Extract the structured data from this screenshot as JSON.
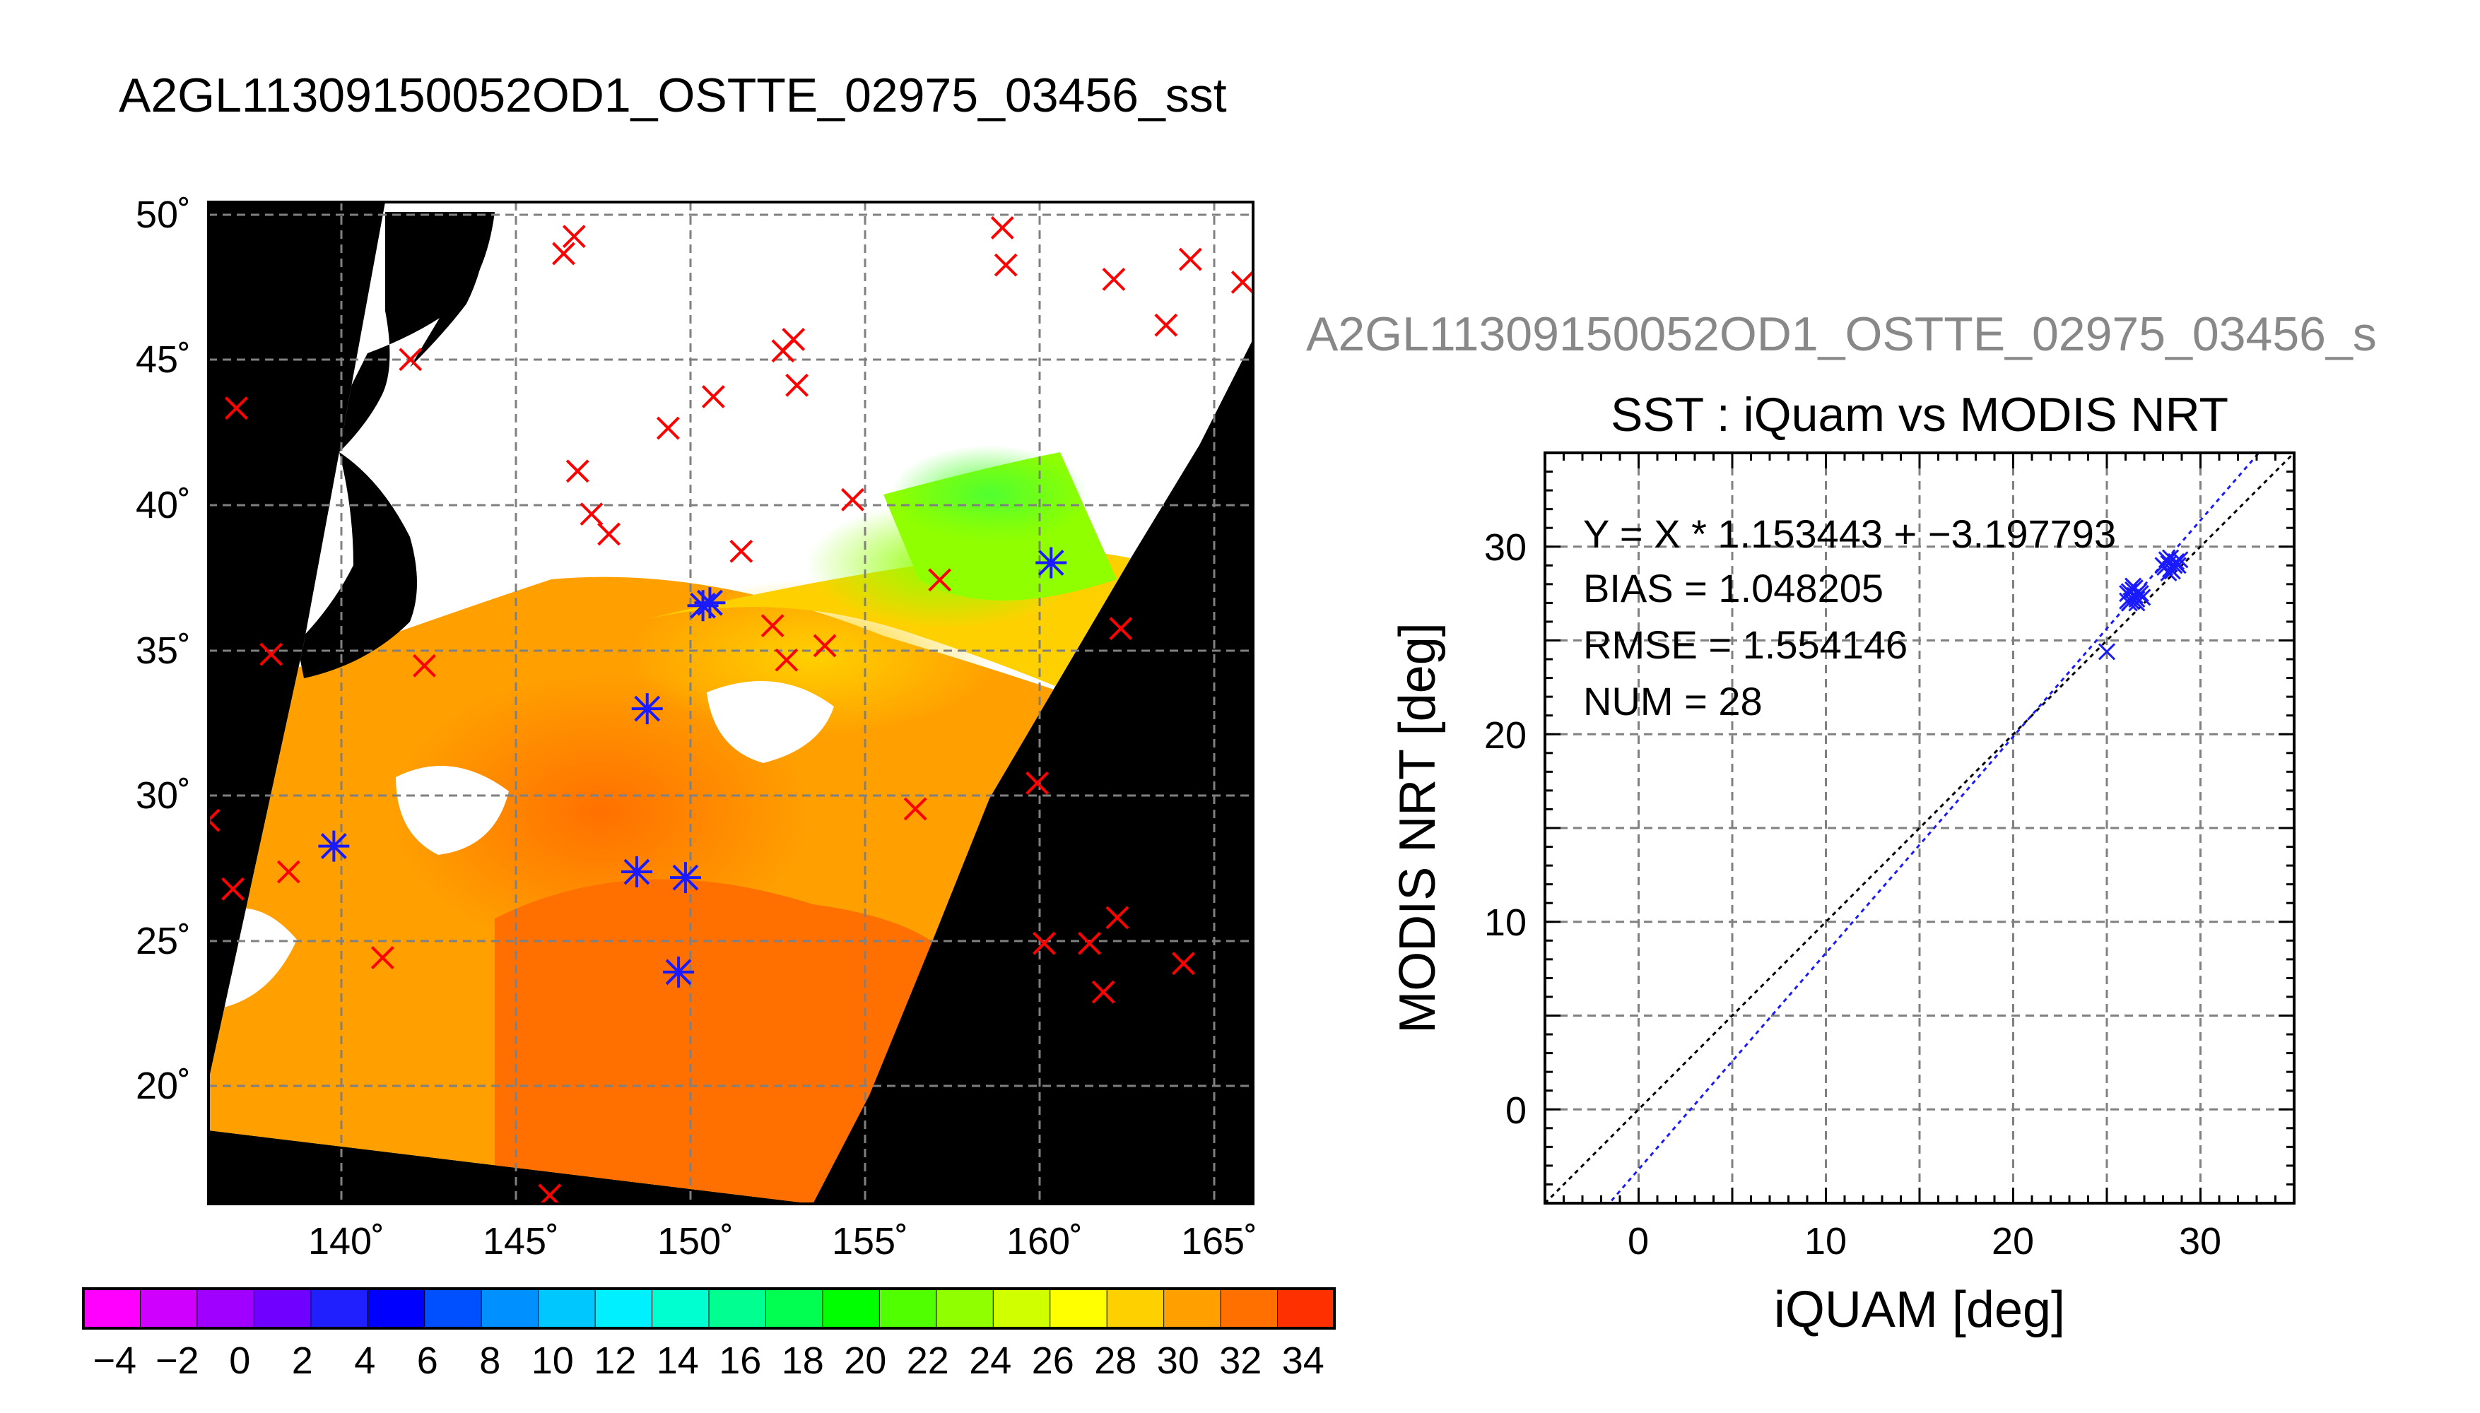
{
  "map_title": "A2GL11309150052OD1_OSTTE_02975_03456_sst",
  "scatter_granule_label": "A2GL11309150052OD1_OSTTE_02975_03456_s",
  "colors": {
    "land": "#000000",
    "cloud": "#ffffff",
    "grid": "#808080",
    "iquam_marker": "#ff0000",
    "matchup_marker": "#1a1aff",
    "fit_line": "#1a1aff",
    "identity_line": "#000000",
    "granule_label": "#888888"
  },
  "chart_data": [
    {
      "type": "heatmap",
      "title": "A2GL11309150052OD1_OSTTE_02975_03456_sst",
      "xlabel": "",
      "ylabel": "",
      "x_ticks": [
        "140˚",
        "145˚",
        "150˚",
        "155˚",
        "160˚",
        "165˚"
      ],
      "y_ticks": [
        "50˚",
        "45˚",
        "40˚",
        "35˚",
        "30˚",
        "25˚",
        "20˚"
      ],
      "xlim": [
        136,
        166
      ],
      "ylim": [
        16,
        51
      ],
      "grid": true,
      "colorbar": {
        "ticks": [
          "−4",
          "−2",
          "0",
          "2",
          "4",
          "6",
          "8",
          "10",
          "12",
          "14",
          "16",
          "18",
          "20",
          "22",
          "24",
          "26",
          "28",
          "30",
          "32",
          "34"
        ],
        "range": [
          -5,
          35
        ],
        "colors": [
          "#ff00ff",
          "#d000ff",
          "#a000ff",
          "#7000ff",
          "#2020ff",
          "#0000ff",
          "#0050ff",
          "#0090ff",
          "#00c8ff",
          "#00f0ff",
          "#00ffd0",
          "#00ff90",
          "#00ff50",
          "#00ff00",
          "#50ff00",
          "#90ff00",
          "#d0ff00",
          "#ffff00",
          "#ffd000",
          "#ffa000",
          "#ff7000",
          "#ff3000"
        ]
      },
      "sst_field_samples": [
        {
          "lon": 141,
          "lat": 30,
          "sst": 28
        },
        {
          "lon": 147,
          "lat": 27,
          "sst": 29
        },
        {
          "lon": 150,
          "lat": 22,
          "sst": 31
        },
        {
          "lon": 153,
          "lat": 31,
          "sst": 27
        },
        {
          "lon": 155,
          "lat": 36,
          "sst": 25
        },
        {
          "lon": 158,
          "lat": 38,
          "sst": 23
        },
        {
          "lon": 157,
          "lat": 41,
          "sst": 20
        }
      ],
      "iquam_points": [
        {
          "lon": 136.8,
          "lat": 43.8
        },
        {
          "lon": 137.8,
          "lat": 35.2
        },
        {
          "lon": 136.0,
          "lat": 29.4
        },
        {
          "lon": 136.7,
          "lat": 27.0
        },
        {
          "lon": 138.3,
          "lat": 27.6
        },
        {
          "lon": 141.0,
          "lat": 24.6
        },
        {
          "lon": 141.8,
          "lat": 45.5
        },
        {
          "lon": 142.2,
          "lat": 34.8
        },
        {
          "lon": 146.2,
          "lat": 49.2
        },
        {
          "lon": 146.5,
          "lat": 49.8
        },
        {
          "lon": 146.6,
          "lat": 41.6
        },
        {
          "lon": 147.0,
          "lat": 40.1
        },
        {
          "lon": 147.5,
          "lat": 39.4
        },
        {
          "lon": 145.8,
          "lat": 16.3
        },
        {
          "lon": 149.2,
          "lat": 43.1
        },
        {
          "lon": 150.5,
          "lat": 44.2
        },
        {
          "lon": 151.3,
          "lat": 38.8
        },
        {
          "lon": 152.5,
          "lat": 45.8
        },
        {
          "lon": 152.8,
          "lat": 46.2
        },
        {
          "lon": 152.9,
          "lat": 44.6
        },
        {
          "lon": 152.2,
          "lat": 36.2
        },
        {
          "lon": 152.6,
          "lat": 35.0
        },
        {
          "lon": 153.7,
          "lat": 35.5
        },
        {
          "lon": 154.5,
          "lat": 40.6
        },
        {
          "lon": 156.3,
          "lat": 29.8
        },
        {
          "lon": 157.0,
          "lat": 37.8
        },
        {
          "lon": 158.8,
          "lat": 50.1
        },
        {
          "lon": 158.9,
          "lat": 48.8
        },
        {
          "lon": 159.8,
          "lat": 30.7
        },
        {
          "lon": 160.0,
          "lat": 25.1
        },
        {
          "lon": 161.3,
          "lat": 25.1
        },
        {
          "lon": 161.7,
          "lat": 23.4
        },
        {
          "lon": 162.1,
          "lat": 26.0
        },
        {
          "lon": 162.0,
          "lat": 48.3
        },
        {
          "lon": 162.2,
          "lat": 36.1
        },
        {
          "lon": 163.5,
          "lat": 46.7
        },
        {
          "lon": 164.2,
          "lat": 49.0
        },
        {
          "lon": 164.0,
          "lat": 24.4
        },
        {
          "lon": 165.7,
          "lat": 48.2
        }
      ],
      "matchup_points": [
        {
          "lon": 139.6,
          "lat": 28.5
        },
        {
          "lon": 148.6,
          "lat": 33.3
        },
        {
          "lon": 150.2,
          "lat": 36.9
        },
        {
          "lon": 150.4,
          "lat": 37.0
        },
        {
          "lon": 148.3,
          "lat": 27.6
        },
        {
          "lon": 149.7,
          "lat": 27.4
        },
        {
          "lon": 149.5,
          "lat": 24.1
        },
        {
          "lon": 160.2,
          "lat": 38.4
        }
      ]
    },
    {
      "type": "scatter",
      "title": "SST : iQuam vs MODIS NRT",
      "xlabel": "iQUAM [deg]",
      "ylabel": "MODIS NRT [deg]",
      "xlim": [
        -5,
        35
      ],
      "ylim": [
        -5,
        35
      ],
      "x_ticks": [
        "0",
        "10",
        "20",
        "30"
      ],
      "y_ticks": [
        "0",
        "10",
        "20",
        "30"
      ],
      "grid": true,
      "stats": {
        "fit_text": "Y = X * 1.153443 + −3.197793",
        "bias_text": "BIAS = 1.048205",
        "rmse_text": "RMSE = 1.554146",
        "num_text": "NUM = 28"
      },
      "fit": {
        "slope": 1.153443,
        "intercept": -3.197793
      },
      "points": [
        {
          "x": 25.0,
          "y": 24.4
        },
        {
          "x": 26.1,
          "y": 27.1
        },
        {
          "x": 26.2,
          "y": 27.6
        },
        {
          "x": 26.3,
          "y": 27.3
        },
        {
          "x": 26.4,
          "y": 27.7
        },
        {
          "x": 26.5,
          "y": 27.4
        },
        {
          "x": 26.6,
          "y": 27.2
        },
        {
          "x": 26.7,
          "y": 27.6
        },
        {
          "x": 26.4,
          "y": 27.9
        },
        {
          "x": 26.2,
          "y": 27.0
        },
        {
          "x": 26.8,
          "y": 27.5
        },
        {
          "x": 26.5,
          "y": 27.8
        },
        {
          "x": 26.3,
          "y": 27.1
        },
        {
          "x": 26.6,
          "y": 27.0
        },
        {
          "x": 26.1,
          "y": 27.5
        },
        {
          "x": 26.9,
          "y": 27.3
        },
        {
          "x": 28.1,
          "y": 28.9
        },
        {
          "x": 28.3,
          "y": 29.1
        },
        {
          "x": 28.4,
          "y": 28.8
        },
        {
          "x": 28.6,
          "y": 29.0
        },
        {
          "x": 28.2,
          "y": 29.3
        },
        {
          "x": 28.5,
          "y": 28.7
        },
        {
          "x": 28.7,
          "y": 29.2
        },
        {
          "x": 28.0,
          "y": 29.0
        },
        {
          "x": 28.8,
          "y": 29.0
        },
        {
          "x": 28.4,
          "y": 29.4
        },
        {
          "x": 28.9,
          "y": 29.3
        },
        {
          "x": 28.3,
          "y": 28.6
        }
      ]
    }
  ]
}
